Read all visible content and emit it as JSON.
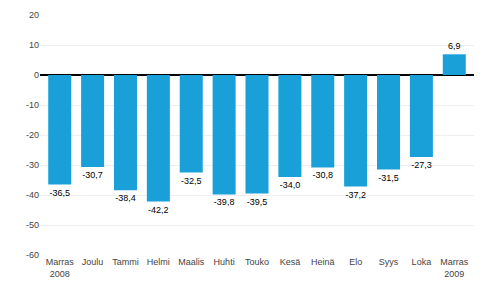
{
  "chart_data": {
    "type": "bar",
    "categories": [
      "Marras\n2008",
      "Joulu",
      "Tammi",
      "Helmi",
      "Maalis",
      "Huhti",
      "Touko",
      "Kesä",
      "Heinä",
      "Elo",
      "Syys",
      "Loka",
      "Marras\n2009"
    ],
    "values": [
      -36.5,
      -30.7,
      -38.4,
      -42.2,
      -32.5,
      -39.8,
      -39.5,
      -34.0,
      -30.8,
      -37.2,
      -31.5,
      -27.3,
      6.9
    ],
    "value_labels": [
      "-36,5",
      "-30,7",
      "-38,4",
      "-42,2",
      "-32,5",
      "-39,8",
      "-39,5",
      "-34,0",
      "-30,8",
      "-37,2",
      "-31,5",
      "-27,3",
      "6,9"
    ],
    "data_labels": true,
    "color": "#1aa0d8",
    "ylim": [
      -60,
      20
    ],
    "yticks": [
      -60,
      -50,
      -40,
      -30,
      -20,
      -10,
      0,
      10,
      20
    ],
    "grid": true
  }
}
